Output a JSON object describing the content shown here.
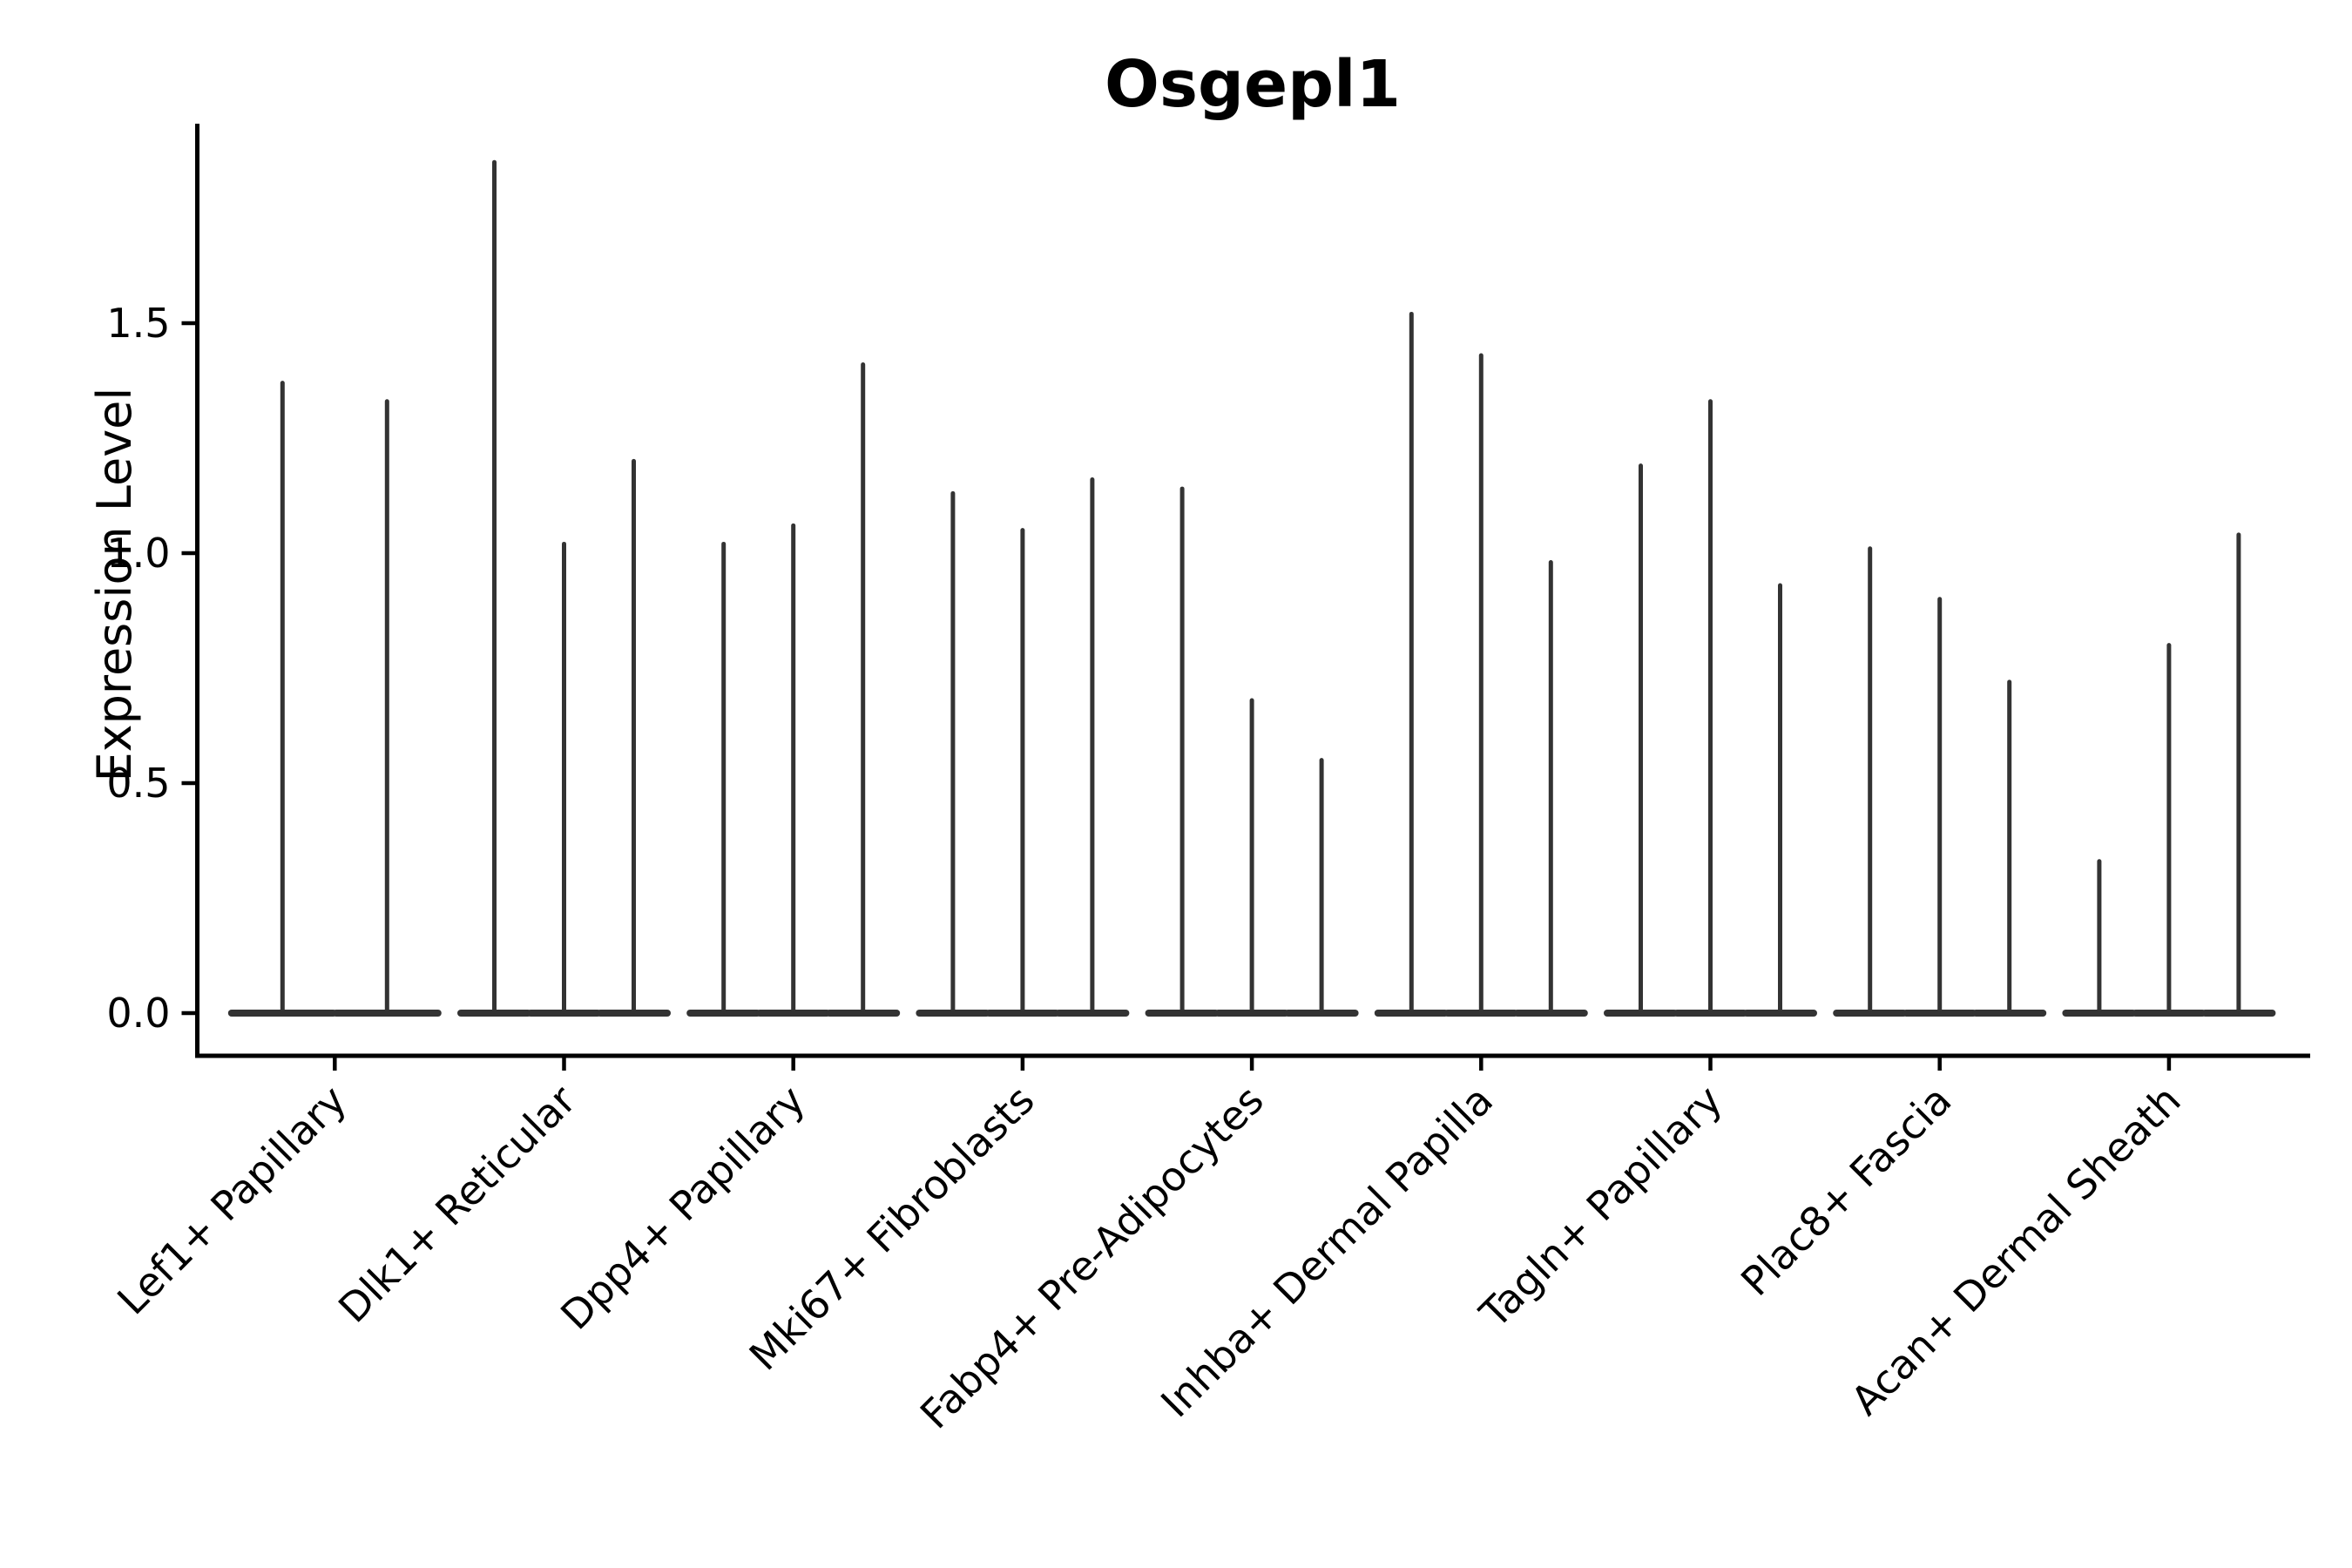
{
  "chart_data": {
    "type": "violin",
    "title": "Osgepl1",
    "ylabel": "Expression Level",
    "xlabel": "",
    "yticks": [
      "0.0",
      "0.5",
      "1.0",
      "1.5"
    ],
    "ylim": [
      -0.09,
      1.93
    ],
    "grid": false,
    "legend_position": "none",
    "categories": [
      "Lef1+ Papillary",
      "Dlk1+ Reticular",
      "Dpp4+ Papillary",
      "Mki67+ Fibroblasts",
      "Fabp4+ Pre-Adipocytes",
      "Inhba+ Dermal Papilla",
      "Tagln+ Papillary",
      "Plac8+ Fascia",
      "Acan+ Dermal Sheath"
    ],
    "groups": [
      {
        "category": "Lef1+ Papillary",
        "violin_peaks": [
          1.37,
          1.33
        ]
      },
      {
        "category": "Dlk1+ Reticular",
        "violin_peaks": [
          1.85,
          1.02,
          1.2
        ]
      },
      {
        "category": "Dpp4+ Papillary",
        "violin_peaks": [
          1.02,
          1.06,
          1.41
        ]
      },
      {
        "category": "Mki67+ Fibroblasts",
        "violin_peaks": [
          1.13,
          1.05,
          1.16
        ]
      },
      {
        "category": "Fabp4+ Pre-Adipocytes",
        "violin_peaks": [
          1.14,
          0.68,
          0.55
        ]
      },
      {
        "category": "Inhba+ Dermal Papilla",
        "violin_peaks": [
          1.52,
          1.43,
          0.98
        ]
      },
      {
        "category": "Tagln+ Papillary",
        "violin_peaks": [
          1.19,
          1.33,
          0.93
        ]
      },
      {
        "category": "Plac8+ Fascia",
        "violin_peaks": [
          1.01,
          0.9,
          0.72
        ]
      },
      {
        "category": "Acan+ Dermal Sheath",
        "violin_peaks": [
          0.33,
          0.8,
          1.04
        ]
      }
    ],
    "colors": {
      "violin": "#333333",
      "axis": "#000000",
      "background": "#ffffff"
    }
  }
}
